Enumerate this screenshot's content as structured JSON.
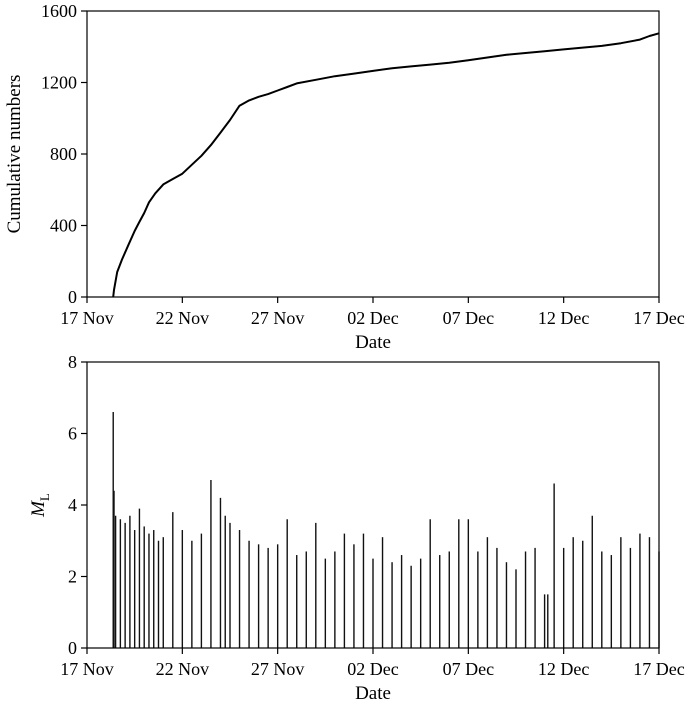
{
  "chart_data": [
    {
      "type": "line",
      "xlabel": "Date",
      "ylabel": "Cumulative numbers",
      "xlim": [
        "2010-11-17",
        "2010-12-17"
      ],
      "ylim": [
        0,
        1600
      ],
      "x_ticks": [
        "17 Nov",
        "22 Nov",
        "27 Nov",
        "02 Dec",
        "07 Dec",
        "12 Dec",
        "17 Dec"
      ],
      "y_ticks": [
        0,
        400,
        800,
        1200,
        1600
      ],
      "grid": false,
      "series": [
        {
          "x": [
            "2010-11-18T09:00",
            "2010-11-18T10:00",
            "2010-11-18T14:00",
            "2010-11-18T20:00",
            "2010-11-19T04:00",
            "2010-11-19T12:00",
            "2010-11-19T18:00",
            "2010-11-20T00:00",
            "2010-11-20T06:00",
            "2010-11-20T14:00",
            "2010-11-21T00:00",
            "2010-11-21T12:00",
            "2010-11-22T00:00",
            "2010-11-22T12:00",
            "2010-11-23T00:00",
            "2010-11-23T12:00",
            "2010-11-24T00:00",
            "2010-11-24T12:00",
            "2010-11-25T00:00",
            "2010-11-25T12:00",
            "2010-11-26T00:00",
            "2010-11-26T12:00",
            "2010-11-27T00:00",
            "2010-11-27T12:00",
            "2010-11-28T00:00",
            "2010-11-29T00:00",
            "2010-11-30T00:00",
            "2010-12-01T00:00",
            "2010-12-02T00:00",
            "2010-12-03T00:00",
            "2010-12-04T00:00",
            "2010-12-05T00:00",
            "2010-12-06T00:00",
            "2010-12-07T00:00",
            "2010-12-08T00:00",
            "2010-12-09T00:00",
            "2010-12-10T00:00",
            "2010-12-11T00:00",
            "2010-12-12T00:00",
            "2010-12-13T00:00",
            "2010-12-14T00:00",
            "2010-12-15T00:00",
            "2010-12-16T00:00",
            "2010-12-16T12:00",
            "2010-12-17T00:00"
          ],
          "y": [
            0,
            40,
            140,
            210,
            290,
            370,
            420,
            470,
            530,
            580,
            630,
            660,
            690,
            740,
            790,
            850,
            920,
            990,
            1070,
            1100,
            1120,
            1135,
            1155,
            1175,
            1195,
            1215,
            1235,
            1250,
            1265,
            1280,
            1290,
            1300,
            1310,
            1325,
            1340,
            1355,
            1365,
            1375,
            1385,
            1395,
            1405,
            1420,
            1440,
            1460,
            1475
          ]
        }
      ]
    },
    {
      "type": "bar",
      "xlabel": "Date",
      "ylabel": "M",
      "ylabel_subscript": "L",
      "xlim": [
        "2010-11-17",
        "2010-12-17"
      ],
      "ylim": [
        0,
        8
      ],
      "x_ticks": [
        "17 Nov",
        "22 Nov",
        "27 Nov",
        "02 Dec",
        "07 Dec",
        "12 Dec",
        "17 Dec"
      ],
      "y_ticks": [
        0,
        2,
        4,
        6,
        8
      ],
      "grid": false,
      "x": [
        "2010-11-18T09:00",
        "2010-11-18T10:00",
        "2010-11-18T12:00",
        "2010-11-18T18:00",
        "2010-11-19T00:00",
        "2010-11-19T06:00",
        "2010-11-19T12:00",
        "2010-11-19T18:00",
        "2010-11-20T00:00",
        "2010-11-20T06:00",
        "2010-11-20T12:00",
        "2010-11-20T18:00",
        "2010-11-21T00:00",
        "2010-11-21T12:00",
        "2010-11-22T00:00",
        "2010-11-22T12:00",
        "2010-11-23T00:00",
        "2010-11-23T12:00",
        "2010-11-24T00:00",
        "2010-11-24T06:00",
        "2010-11-24T12:00",
        "2010-11-25T00:00",
        "2010-11-25T12:00",
        "2010-11-26T00:00",
        "2010-11-26T12:00",
        "2010-11-27T00:00",
        "2010-11-27T12:00",
        "2010-11-28T00:00",
        "2010-11-28T12:00",
        "2010-11-29T00:00",
        "2010-11-29T12:00",
        "2010-11-30T00:00",
        "2010-11-30T12:00",
        "2010-12-01T00:00",
        "2010-12-01T12:00",
        "2010-12-02T00:00",
        "2010-12-02T12:00",
        "2010-12-03T00:00",
        "2010-12-03T12:00",
        "2010-12-04T00:00",
        "2010-12-04T12:00",
        "2010-12-05T00:00",
        "2010-12-05T12:00",
        "2010-12-06T00:00",
        "2010-12-06T12:00",
        "2010-12-07T00:00",
        "2010-12-07T12:00",
        "2010-12-08T00:00",
        "2010-12-08T12:00",
        "2010-12-09T00:00",
        "2010-12-09T12:00",
        "2010-12-10T00:00",
        "2010-12-10T12:00",
        "2010-12-11T00:00",
        "2010-12-11T04:00",
        "2010-12-11T12:00",
        "2010-12-12T00:00",
        "2010-12-12T12:00",
        "2010-12-13T00:00",
        "2010-12-13T12:00",
        "2010-12-14T00:00",
        "2010-12-14T12:00",
        "2010-12-15T00:00",
        "2010-12-15T12:00",
        "2010-12-16T00:00",
        "2010-12-16T12:00",
        "2010-12-17T00:00"
      ],
      "values": [
        6.6,
        4.4,
        3.7,
        3.6,
        3.5,
        3.7,
        3.3,
        3.9,
        3.4,
        3.2,
        3.3,
        3.0,
        3.1,
        3.8,
        3.3,
        3.0,
        3.2,
        4.7,
        4.2,
        3.7,
        3.5,
        3.3,
        3.0,
        2.9,
        2.8,
        2.9,
        3.6,
        2.6,
        2.7,
        3.5,
        2.5,
        2.7,
        3.2,
        2.9,
        3.2,
        2.5,
        3.1,
        2.4,
        2.6,
        2.3,
        2.5,
        3.6,
        2.6,
        2.7,
        3.6,
        3.6,
        2.7,
        3.1,
        2.8,
        2.4,
        2.2,
        2.7,
        2.8,
        1.5,
        1.5,
        4.6,
        2.8,
        3.1,
        3.0,
        3.7,
        2.7,
        2.6,
        3.1,
        2.8,
        3.2,
        3.1,
        2.7
      ]
    }
  ]
}
